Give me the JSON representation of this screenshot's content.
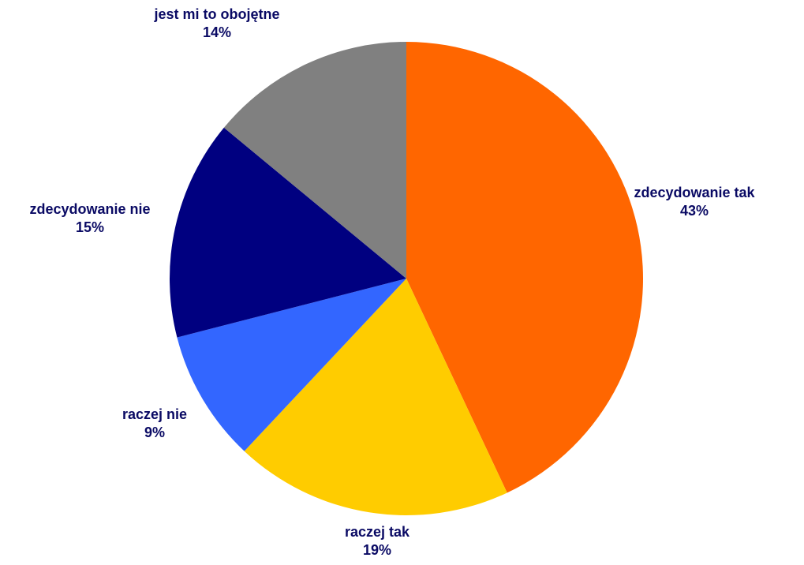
{
  "chart_data": {
    "type": "pie",
    "title": "",
    "start": "12 o'clock",
    "direction": "clockwise",
    "label_color": "#0A0A64",
    "slices": [
      {
        "name": "zdecydowanie tak",
        "value": 43,
        "label": "43%",
        "color": "#FF6600"
      },
      {
        "name": "raczej tak",
        "value": 19,
        "label": "19%",
        "color": "#FFCC00"
      },
      {
        "name": "raczej nie",
        "value": 9,
        "label": "9%",
        "color": "#3366FF"
      },
      {
        "name": "zdecydowanie nie",
        "value": 15,
        "label": "15%",
        "color": "#000080"
      },
      {
        "name": "jest mi to obojętne",
        "value": 14,
        "label": "14%",
        "color": "#808080"
      }
    ]
  }
}
